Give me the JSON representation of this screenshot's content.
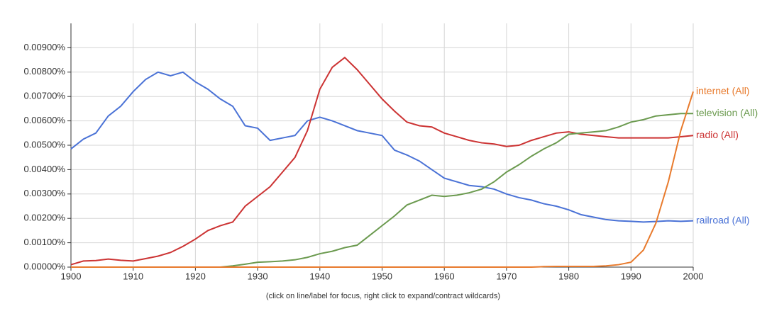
{
  "chart_data": {
    "type": "line",
    "note_text": "(click on line/label for focus, right click to expand/contract wildcards)",
    "x": [
      1900,
      1902,
      1904,
      1906,
      1908,
      1910,
      1912,
      1914,
      1916,
      1918,
      1920,
      1922,
      1924,
      1926,
      1928,
      1930,
      1932,
      1934,
      1936,
      1938,
      1940,
      1942,
      1944,
      1946,
      1948,
      1950,
      1952,
      1954,
      1956,
      1958,
      1960,
      1962,
      1964,
      1966,
      1968,
      1970,
      1972,
      1974,
      1976,
      1978,
      1980,
      1982,
      1984,
      1986,
      1988,
      1990,
      1992,
      1994,
      1996,
      1998,
      2000
    ],
    "xlim": [
      1900,
      2000
    ],
    "xticks": [
      1900,
      1910,
      1920,
      1930,
      1940,
      1950,
      1960,
      1970,
      1980,
      1990,
      2000
    ],
    "ylim": [
      0,
      0.01
    ],
    "yticks": [
      {
        "value": 0,
        "label": "0.00000%"
      },
      {
        "value": 0.001,
        "label": "0.00100%"
      },
      {
        "value": 0.002,
        "label": "0.00200%"
      },
      {
        "value": 0.003,
        "label": "0.00300%"
      },
      {
        "value": 0.004,
        "label": "0.00400%"
      },
      {
        "value": 0.005,
        "label": "0.00500%"
      },
      {
        "value": 0.006,
        "label": "0.00600%"
      },
      {
        "value": 0.007,
        "label": "0.00700%"
      },
      {
        "value": 0.008,
        "label": "0.00800%"
      },
      {
        "value": 0.009,
        "label": "0.00900%"
      }
    ],
    "grid": true,
    "series": [
      {
        "name": "railroad (All)",
        "color": "#4a72d6",
        "values": [
          0.00485,
          0.00525,
          0.0055,
          0.0062,
          0.0066,
          0.0072,
          0.0077,
          0.008,
          0.00785,
          0.008,
          0.0076,
          0.0073,
          0.0069,
          0.0066,
          0.0058,
          0.0057,
          0.0052,
          0.0053,
          0.0054,
          0.006,
          0.00615,
          0.006,
          0.0058,
          0.0056,
          0.0055,
          0.0054,
          0.0048,
          0.0046,
          0.00435,
          0.004,
          0.00365,
          0.0035,
          0.00335,
          0.0033,
          0.0032,
          0.003,
          0.00285,
          0.00275,
          0.0026,
          0.0025,
          0.00235,
          0.00215,
          0.00205,
          0.00195,
          0.0019,
          0.00188,
          0.00185,
          0.00187,
          0.0019,
          0.00188,
          0.0019
        ]
      },
      {
        "name": "radio (All)",
        "color": "#cc3333",
        "values": [
          0.0001,
          0.00025,
          0.00027,
          0.00033,
          0.00028,
          0.00025,
          0.00035,
          0.00045,
          0.0006,
          0.00085,
          0.00115,
          0.0015,
          0.0017,
          0.00185,
          0.0025,
          0.0029,
          0.0033,
          0.0039,
          0.0045,
          0.0056,
          0.0073,
          0.0082,
          0.0086,
          0.0081,
          0.0075,
          0.0069,
          0.0064,
          0.00595,
          0.0058,
          0.00575,
          0.0055,
          0.00535,
          0.0052,
          0.0051,
          0.00505,
          0.00495,
          0.005,
          0.0052,
          0.00535,
          0.0055,
          0.00555,
          0.00545,
          0.0054,
          0.00535,
          0.0053,
          0.0053,
          0.0053,
          0.0053,
          0.0053,
          0.00535,
          0.0054
        ]
      },
      {
        "name": "television (All)",
        "color": "#6b9a4f",
        "values": [
          0,
          0,
          0,
          0,
          0,
          0,
          0,
          0,
          0,
          0,
          0,
          0,
          0,
          5e-05,
          0.00012,
          0.0002,
          0.00022,
          0.00025,
          0.0003,
          0.0004,
          0.00055,
          0.00065,
          0.0008,
          0.0009,
          0.0013,
          0.0017,
          0.0021,
          0.00255,
          0.00275,
          0.00295,
          0.0029,
          0.00295,
          0.00305,
          0.0032,
          0.0035,
          0.0039,
          0.0042,
          0.00455,
          0.00485,
          0.0051,
          0.00545,
          0.0055,
          0.00555,
          0.0056,
          0.00575,
          0.00595,
          0.00605,
          0.0062,
          0.00625,
          0.0063,
          0.0063
        ]
      },
      {
        "name": "internet (All)",
        "color": "#e87a2c",
        "values": [
          0,
          0,
          0,
          0,
          0,
          0,
          0,
          0,
          0,
          0,
          0,
          0,
          0,
          0,
          0,
          0,
          0,
          0,
          0,
          0,
          0,
          0,
          0,
          0,
          0,
          0,
          0,
          0,
          0,
          0,
          0,
          0,
          0,
          0,
          0,
          0,
          0,
          0,
          2e-05,
          3e-05,
          3e-05,
          3e-05,
          3e-05,
          5e-05,
          0.0001,
          0.0002,
          0.0007,
          0.0018,
          0.0035,
          0.0056,
          0.0072
        ]
      }
    ]
  }
}
